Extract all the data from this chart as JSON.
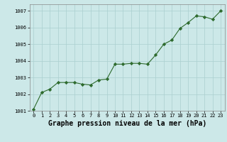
{
  "x": [
    0,
    1,
    2,
    3,
    4,
    5,
    6,
    7,
    8,
    9,
    10,
    11,
    12,
    13,
    14,
    15,
    16,
    17,
    18,
    19,
    20,
    21,
    22,
    23
  ],
  "y": [
    1001.1,
    1002.1,
    1002.3,
    1002.7,
    1002.7,
    1002.7,
    1002.6,
    1002.55,
    1002.85,
    1002.9,
    1003.8,
    1003.8,
    1003.85,
    1003.85,
    1003.8,
    1004.35,
    1005.0,
    1005.25,
    1005.95,
    1006.3,
    1006.7,
    1006.65,
    1006.5,
    1007.0
  ],
  "line_color": "#2d6a2d",
  "marker_color": "#2d6a2d",
  "bg_color": "#cce8e8",
  "grid_color": "#aacfcf",
  "xlabel": "Graphe pression niveau de la mer (hPa)",
  "ylim": [
    1001.0,
    1007.4
  ],
  "yticks": [
    1001,
    1002,
    1003,
    1004,
    1005,
    1006,
    1007
  ],
  "xticks": [
    0,
    1,
    2,
    3,
    4,
    5,
    6,
    7,
    8,
    9,
    10,
    11,
    12,
    13,
    14,
    15,
    16,
    17,
    18,
    19,
    20,
    21,
    22,
    23
  ],
  "tick_fontsize": 5.0,
  "xlabel_fontsize": 7.0
}
